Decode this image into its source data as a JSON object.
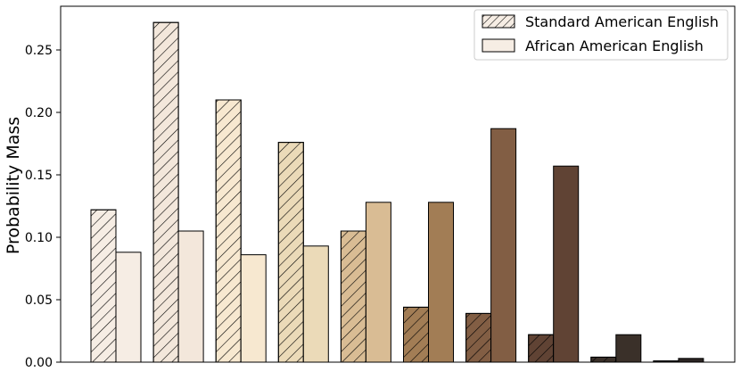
{
  "chart_data": {
    "type": "bar",
    "title": "",
    "xlabel": "",
    "ylabel": "Probability Mass",
    "ylim": [
      0,
      0.285
    ],
    "yticks": [
      0.0,
      0.05,
      0.1,
      0.15,
      0.2,
      0.25
    ],
    "ytick_labels": [
      "0.00",
      "0.05",
      "0.10",
      "0.15",
      "0.20",
      "0.25"
    ],
    "categories": [
      "",
      "",
      "",
      "",
      "",
      "",
      "",
      "",
      "",
      ""
    ],
    "grid": false,
    "legend": {
      "placement": "top-right"
    },
    "group_colors": [
      "#f6ede4",
      "#f3e7db",
      "#f7e8d0",
      "#ebdab8",
      "#d9bc94",
      "#a27d55",
      "#825e44",
      "#604334",
      "#3a3029",
      "#2b2523"
    ],
    "series": [
      {
        "name": "Standard American English",
        "hatch": true,
        "values": [
          0.122,
          0.272,
          0.21,
          0.176,
          0.105,
          0.044,
          0.039,
          0.022,
          0.004,
          0.001
        ]
      },
      {
        "name": "African American English",
        "hatch": false,
        "values": [
          0.088,
          0.105,
          0.086,
          0.093,
          0.128,
          0.128,
          0.187,
          0.157,
          0.022,
          0.003
        ]
      }
    ]
  }
}
